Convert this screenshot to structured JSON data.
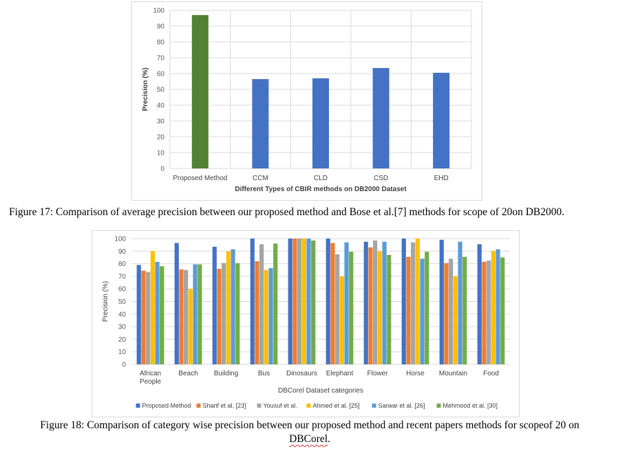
{
  "chart_data": [
    {
      "type": "bar",
      "title": "",
      "xlabel": "Different Types of CBIR methods on DB2000 Dataset",
      "ylabel": "Precision (%)",
      "ylim": [
        0,
        100
      ],
      "yticks": [
        0,
        10,
        20,
        30,
        40,
        50,
        60,
        70,
        80,
        90,
        100
      ],
      "grid": true,
      "categories": [
        "Proposed Method",
        "CCM",
        "CLD",
        "CSD",
        "EHD"
      ],
      "values": [
        97,
        56.5,
        57,
        63.5,
        60.5
      ],
      "colors": [
        "#548235",
        "#4472c4",
        "#4472c4",
        "#4472c4",
        "#4472c4"
      ]
    },
    {
      "type": "bar",
      "title": "",
      "xlabel": "DBCorel Dataset categories",
      "ylabel": "Precision (%)",
      "ylim": [
        0,
        100
      ],
      "yticks": [
        0,
        10,
        20,
        30,
        40,
        50,
        60,
        70,
        80,
        90,
        100
      ],
      "grid": true,
      "legend": "bottom",
      "categories": [
        "African People",
        "Beach",
        "Building",
        "Bus",
        "Dinosaurs",
        "Elephant",
        "Flower",
        "Horse",
        "Mountain",
        "Food"
      ],
      "series": [
        {
          "name": "Proposed Method",
          "color": "#4472c4",
          "values": [
            79,
            96.5,
            93.5,
            100,
            100,
            100,
            97.5,
            100,
            99,
            95.5
          ]
        },
        {
          "name": "Sharif et al. [23]",
          "color": "#ed7d31",
          "values": [
            74.5,
            75.5,
            76,
            82,
            100,
            96.5,
            93,
            85.5,
            80.5,
            81.5
          ]
        },
        {
          "name": "Yousuf et al.",
          "color": "#a5a5a5",
          "values": [
            73.5,
            75,
            80.5,
            95.5,
            100,
            87.5,
            98.5,
            97,
            84,
            82.5
          ]
        },
        {
          "name": "Ahmed et al. [25]",
          "color": "#ffc000",
          "values": [
            90,
            60,
            90,
            75,
            100,
            70,
            90,
            100,
            70,
            90
          ]
        },
        {
          "name": "Sarwar et al. [26]",
          "color": "#5b9bd5",
          "values": [
            81.5,
            79.5,
            91.5,
            76.5,
            100,
            97,
            97.5,
            84,
            97.5,
            91.5
          ]
        },
        {
          "name": "Mehmood et al. [30]",
          "color": "#70ad47",
          "values": [
            78,
            79.5,
            80.5,
            96,
            98.5,
            89.5,
            87,
            89.5,
            85.5,
            85
          ]
        }
      ]
    }
  ],
  "captions": {
    "fig17": "Figure 17: Comparison of average precision between our proposed method and Bose et al.[7] methods for scope of 20on DB2000.",
    "fig18_main": "Figure 18: Comparison of category wise precision between our proposed method and recent papers methods for scopeof 20 on",
    "fig18_tail_word": "DBCorel",
    "fig18_tail_punct": "."
  }
}
